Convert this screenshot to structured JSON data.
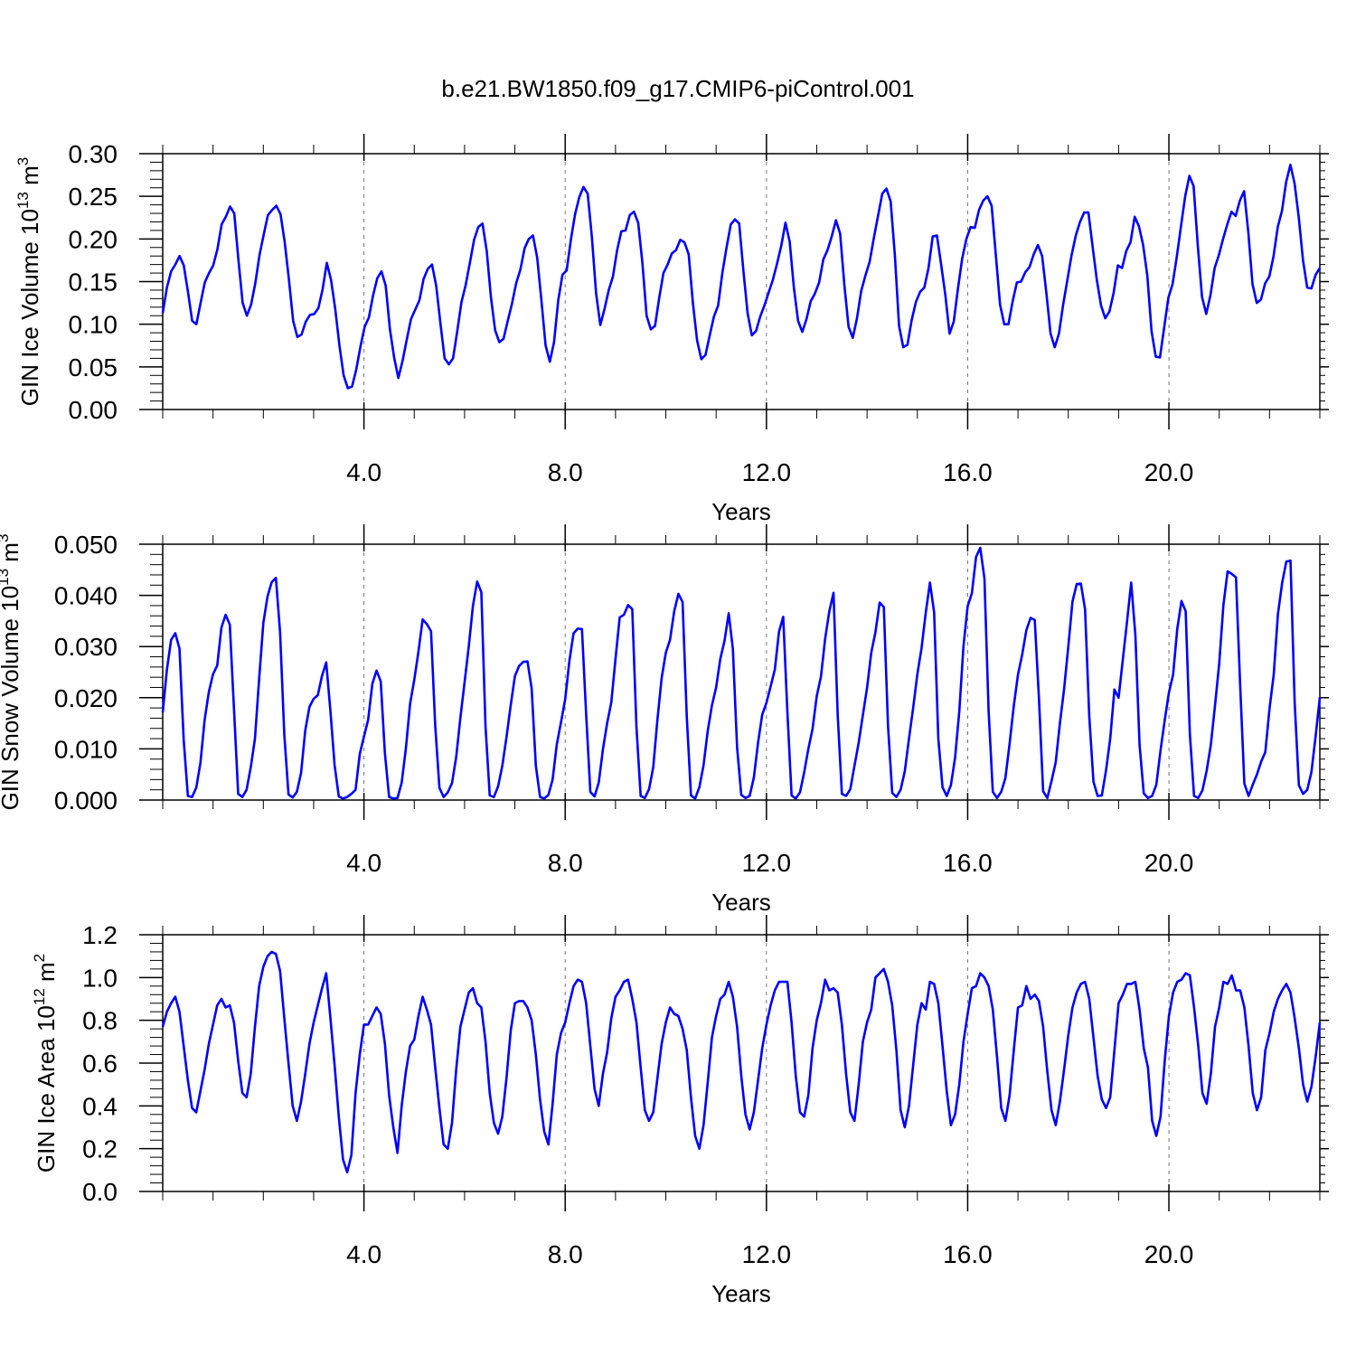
{
  "title": "b.e21.BW1850.f09_g17.CMIP6-piControl.001",
  "chart_data": [
    {
      "type": "line",
      "ylabel_main": "GIN Ice Volume 10",
      "ylabel_exp": "13",
      "ylabel_unit": " m",
      "ylabel_unit_exp": "3",
      "xlabel": "Years",
      "xlim": [
        0,
        23.0
      ],
      "ylim": [
        0,
        0.3
      ],
      "xticks": [
        4.0,
        8.0,
        12.0,
        16.0,
        20.0
      ],
      "xtick_labels": [
        "4.0",
        "8.0",
        "12.0",
        "16.0",
        "20.0"
      ],
      "yticks": [
        0,
        0.05,
        0.1,
        0.15,
        0.2,
        0.25,
        0.3
      ],
      "ytick_labels": [
        "0.00",
        "0.05",
        "0.10",
        "0.15",
        "0.20",
        "0.25",
        "0.30"
      ],
      "grid": "dashed vertical at x ticks",
      "color": "#0000ff",
      "series": [
        {
          "values": [
            0.113,
            0.143,
            0.162,
            0.17,
            0.18,
            0.169,
            0.138,
            0.104,
            0.1,
            0.125,
            0.149,
            0.16,
            0.169,
            0.188,
            0.217,
            0.226,
            0.238,
            0.23,
            0.175,
            0.125,
            0.11,
            0.123,
            0.148,
            0.181,
            0.205,
            0.228,
            0.234,
            0.239,
            0.229,
            0.196,
            0.152,
            0.104,
            0.085,
            0.088,
            0.103,
            0.111,
            0.112,
            0.119,
            0.141,
            0.172,
            0.152,
            0.118,
            0.075,
            0.04,
            0.025,
            0.027,
            0.047,
            0.074,
            0.097,
            0.108,
            0.134,
            0.154,
            0.162,
            0.145,
            0.094,
            0.061,
            0.037,
            0.057,
            0.082,
            0.106,
            0.117,
            0.128,
            0.153,
            0.165,
            0.17,
            0.145,
            0.101,
            0.06,
            0.053,
            0.06,
            0.092,
            0.126,
            0.146,
            0.172,
            0.199,
            0.214,
            0.218,
            0.186,
            0.132,
            0.093,
            0.079,
            0.083,
            0.104,
            0.124,
            0.148,
            0.164,
            0.189,
            0.2,
            0.204,
            0.178,
            0.128,
            0.075,
            0.056,
            0.079,
            0.128,
            0.158,
            0.163,
            0.199,
            0.229,
            0.249,
            0.261,
            0.253,
            0.202,
            0.136,
            0.099,
            0.118,
            0.14,
            0.156,
            0.187,
            0.209,
            0.21,
            0.228,
            0.232,
            0.219,
            0.172,
            0.11,
            0.094,
            0.098,
            0.131,
            0.16,
            0.17,
            0.183,
            0.187,
            0.199,
            0.196,
            0.182,
            0.125,
            0.081,
            0.059,
            0.064,
            0.087,
            0.109,
            0.122,
            0.16,
            0.19,
            0.217,
            0.223,
            0.218,
            0.163,
            0.113,
            0.087,
            0.092,
            0.109,
            0.122,
            0.137,
            0.152,
            0.171,
            0.192,
            0.219,
            0.197,
            0.143,
            0.104,
            0.091,
            0.106,
            0.127,
            0.136,
            0.149,
            0.176,
            0.187,
            0.203,
            0.222,
            0.206,
            0.146,
            0.097,
            0.084,
            0.107,
            0.139,
            0.157,
            0.173,
            0.201,
            0.227,
            0.253,
            0.259,
            0.244,
            0.181,
            0.098,
            0.073,
            0.076,
            0.105,
            0.126,
            0.138,
            0.143,
            0.166,
            0.203,
            0.204,
            0.17,
            0.134,
            0.089,
            0.103,
            0.142,
            0.177,
            0.2,
            0.214,
            0.213,
            0.234,
            0.245,
            0.25,
            0.239,
            0.181,
            0.123,
            0.1,
            0.1,
            0.127,
            0.149,
            0.15,
            0.161,
            0.167,
            0.182,
            0.193,
            0.18,
            0.137,
            0.089,
            0.073,
            0.089,
            0.123,
            0.152,
            0.181,
            0.204,
            0.22,
            0.231,
            0.231,
            0.191,
            0.152,
            0.122,
            0.107,
            0.115,
            0.137,
            0.169,
            0.166,
            0.186,
            0.196,
            0.226,
            0.215,
            0.193,
            0.157,
            0.092,
            0.062,
            0.061,
            0.096,
            0.131,
            0.147,
            0.179,
            0.215,
            0.25,
            0.274,
            0.262,
            0.192,
            0.132,
            0.112,
            0.134,
            0.166,
            0.181,
            0.2,
            0.217,
            0.232,
            0.227,
            0.245,
            0.256,
            0.208,
            0.147,
            0.125,
            0.129,
            0.148,
            0.156,
            0.18,
            0.214,
            0.233,
            0.267,
            0.287,
            0.265,
            0.225,
            0.175,
            0.143,
            0.142,
            0.158,
            0.166
          ]
        }
      ]
    },
    {
      "type": "line",
      "ylabel_main": "GIN Snow Volume 10",
      "ylabel_exp": "13",
      "ylabel_unit": " m",
      "ylabel_unit_exp": "3",
      "xlabel": "Years",
      "xlim": [
        0,
        23.0
      ],
      "ylim": [
        0,
        0.05
      ],
      "xticks": [
        4.0,
        8.0,
        12.0,
        16.0,
        20.0
      ],
      "xtick_labels": [
        "4.0",
        "8.0",
        "12.0",
        "16.0",
        "20.0"
      ],
      "yticks": [
        0,
        0.01,
        0.02,
        0.03,
        0.04,
        0.05
      ],
      "ytick_labels": [
        "0.000",
        "0.010",
        "0.020",
        "0.030",
        "0.040",
        "0.050"
      ],
      "grid": "dashed vertical at x ticks",
      "color": "#0000ff",
      "series": [
        {
          "values": [
            0.0171,
            0.0255,
            0.0313,
            0.0326,
            0.0296,
            0.0118,
            0.0008,
            0.0006,
            0.0024,
            0.0073,
            0.0157,
            0.0211,
            0.0246,
            0.0263,
            0.0337,
            0.0362,
            0.0343,
            0.0178,
            0.0012,
            0.0006,
            0.002,
            0.0064,
            0.012,
            0.0237,
            0.0346,
            0.0398,
            0.0426,
            0.0434,
            0.0327,
            0.0128,
            0.0011,
            0.0005,
            0.0016,
            0.0053,
            0.0136,
            0.0182,
            0.0198,
            0.0205,
            0.0243,
            0.0269,
            0.0174,
            0.0068,
            0.0007,
            0.0003,
            0.0006,
            0.0012,
            0.002,
            0.009,
            0.0124,
            0.0157,
            0.0227,
            0.0253,
            0.0232,
            0.0091,
            0.0006,
            0.0003,
            0.0004,
            0.0034,
            0.0101,
            0.0188,
            0.0235,
            0.029,
            0.0353,
            0.0344,
            0.033,
            0.0145,
            0.0024,
            0.0006,
            0.0015,
            0.0033,
            0.0084,
            0.0161,
            0.023,
            0.03,
            0.038,
            0.0427,
            0.0406,
            0.0143,
            0.0009,
            0.0006,
            0.0027,
            0.0067,
            0.0123,
            0.0185,
            0.0242,
            0.0262,
            0.027,
            0.0271,
            0.0218,
            0.0067,
            0.0006,
            0.0003,
            0.001,
            0.004,
            0.0109,
            0.0152,
            0.0197,
            0.0272,
            0.0326,
            0.0335,
            0.0334,
            0.0167,
            0.0016,
            0.0007,
            0.0034,
            0.0099,
            0.015,
            0.0191,
            0.0276,
            0.0357,
            0.0362,
            0.0381,
            0.0373,
            0.0142,
            0.0008,
            0.0004,
            0.0021,
            0.0064,
            0.0157,
            0.0238,
            0.0288,
            0.0313,
            0.0369,
            0.0403,
            0.0387,
            0.0163,
            0.0009,
            0.0003,
            0.0025,
            0.0068,
            0.0135,
            0.0185,
            0.022,
            0.0276,
            0.0311,
            0.0365,
            0.0295,
            0.0103,
            0.001,
            0.0004,
            0.0008,
            0.0044,
            0.0112,
            0.0167,
            0.019,
            0.0222,
            0.0255,
            0.0329,
            0.0358,
            0.0172,
            0.0009,
            0.0003,
            0.0015,
            0.0054,
            0.01,
            0.0139,
            0.0203,
            0.0241,
            0.0315,
            0.0369,
            0.0405,
            0.0166,
            0.0012,
            0.0008,
            0.0021,
            0.0067,
            0.0112,
            0.0166,
            0.0219,
            0.0288,
            0.0328,
            0.0386,
            0.0377,
            0.0145,
            0.0014,
            0.0006,
            0.002,
            0.0056,
            0.012,
            0.018,
            0.0246,
            0.0297,
            0.0366,
            0.0425,
            0.0367,
            0.012,
            0.0025,
            0.0008,
            0.0029,
            0.0083,
            0.0173,
            0.0301,
            0.0379,
            0.0404,
            0.0475,
            0.0493,
            0.0433,
            0.0173,
            0.0016,
            0.0004,
            0.0016,
            0.0043,
            0.011,
            0.0184,
            0.0245,
            0.0284,
            0.0332,
            0.0356,
            0.0352,
            0.0199,
            0.0017,
            0.0004,
            0.0037,
            0.0074,
            0.015,
            0.0217,
            0.03,
            0.0388,
            0.0422,
            0.0423,
            0.0373,
            0.0164,
            0.0036,
            0.0008,
            0.0009,
            0.0058,
            0.012,
            0.0216,
            0.02,
            0.0274,
            0.0348,
            0.0425,
            0.0323,
            0.0108,
            0.0013,
            0.0004,
            0.0008,
            0.003,
            0.0097,
            0.0156,
            0.021,
            0.0245,
            0.0335,
            0.0389,
            0.0369,
            0.0129,
            0.0008,
            0.0004,
            0.0019,
            0.0057,
            0.0108,
            0.0185,
            0.0267,
            0.0381,
            0.0447,
            0.0442,
            0.0435,
            0.0224,
            0.0032,
            0.0008,
            0.003,
            0.005,
            0.0075,
            0.0094,
            0.0179,
            0.0245,
            0.0363,
            0.0424,
            0.0466,
            0.0468,
            0.019,
            0.0029,
            0.0012,
            0.002,
            0.0055,
            0.0125,
            0.0201
          ]
        }
      ]
    },
    {
      "type": "line",
      "ylabel_main": "GIN Ice Area 10",
      "ylabel_exp": "12",
      "ylabel_unit": " m",
      "ylabel_unit_exp": "2",
      "xlabel": "Years",
      "xlim": [
        0,
        23.0
      ],
      "ylim": [
        0,
        1.2
      ],
      "xticks": [
        4.0,
        8.0,
        12.0,
        16.0,
        20.0
      ],
      "xtick_labels": [
        "4.0",
        "8.0",
        "12.0",
        "16.0",
        "20.0"
      ],
      "yticks": [
        0,
        0.2,
        0.4,
        0.6,
        0.8,
        1.0,
        1.2
      ],
      "ytick_labels": [
        "0.0",
        "0.2",
        "0.4",
        "0.6",
        "0.8",
        "1.0",
        "1.2"
      ],
      "grid": "dashed vertical at x ticks",
      "color": "#0000ff",
      "series": [
        {
          "values": [
            0.77,
            0.84,
            0.88,
            0.91,
            0.84,
            0.68,
            0.52,
            0.39,
            0.37,
            0.47,
            0.57,
            0.69,
            0.78,
            0.87,
            0.9,
            0.86,
            0.87,
            0.79,
            0.61,
            0.46,
            0.44,
            0.55,
            0.77,
            0.96,
            1.05,
            1.1,
            1.12,
            1.11,
            1.03,
            0.81,
            0.6,
            0.4,
            0.33,
            0.42,
            0.55,
            0.69,
            0.79,
            0.87,
            0.95,
            1.02,
            0.81,
            0.59,
            0.35,
            0.15,
            0.09,
            0.17,
            0.46,
            0.64,
            0.78,
            0.78,
            0.82,
            0.86,
            0.83,
            0.69,
            0.45,
            0.3,
            0.18,
            0.4,
            0.56,
            0.68,
            0.71,
            0.82,
            0.91,
            0.85,
            0.78,
            0.58,
            0.39,
            0.22,
            0.2,
            0.32,
            0.57,
            0.77,
            0.85,
            0.93,
            0.95,
            0.88,
            0.86,
            0.7,
            0.46,
            0.32,
            0.27,
            0.35,
            0.53,
            0.75,
            0.88,
            0.89,
            0.89,
            0.86,
            0.8,
            0.64,
            0.43,
            0.28,
            0.22,
            0.41,
            0.64,
            0.74,
            0.79,
            0.88,
            0.96,
            0.99,
            0.98,
            0.88,
            0.68,
            0.48,
            0.4,
            0.55,
            0.65,
            0.81,
            0.91,
            0.94,
            0.98,
            0.99,
            0.9,
            0.79,
            0.58,
            0.38,
            0.33,
            0.37,
            0.53,
            0.69,
            0.79,
            0.86,
            0.83,
            0.82,
            0.76,
            0.66,
            0.44,
            0.26,
            0.2,
            0.31,
            0.51,
            0.72,
            0.82,
            0.9,
            0.92,
            0.98,
            0.91,
            0.77,
            0.54,
            0.36,
            0.29,
            0.37,
            0.52,
            0.67,
            0.78,
            0.87,
            0.94,
            0.98,
            0.98,
            0.98,
            0.79,
            0.54,
            0.37,
            0.35,
            0.45,
            0.67,
            0.8,
            0.88,
            0.99,
            0.94,
            0.95,
            0.93,
            0.78,
            0.55,
            0.37,
            0.33,
            0.5,
            0.7,
            0.79,
            0.85,
            1.0,
            1.02,
            1.04,
            0.98,
            0.87,
            0.66,
            0.38,
            0.3,
            0.4,
            0.59,
            0.78,
            0.88,
            0.85,
            0.98,
            0.97,
            0.88,
            0.68,
            0.47,
            0.31,
            0.36,
            0.5,
            0.7,
            0.83,
            0.95,
            0.96,
            1.02,
            1.0,
            0.96,
            0.85,
            0.63,
            0.39,
            0.33,
            0.45,
            0.66,
            0.86,
            0.87,
            0.96,
            0.9,
            0.92,
            0.89,
            0.77,
            0.56,
            0.38,
            0.31,
            0.42,
            0.57,
            0.73,
            0.86,
            0.93,
            0.97,
            0.98,
            0.9,
            0.72,
            0.54,
            0.43,
            0.39,
            0.44,
            0.66,
            0.88,
            0.92,
            0.97,
            0.97,
            0.98,
            0.85,
            0.67,
            0.58,
            0.33,
            0.26,
            0.35,
            0.61,
            0.82,
            0.93,
            0.98,
            0.99,
            1.02,
            1.01,
            0.86,
            0.68,
            0.46,
            0.41,
            0.55,
            0.77,
            0.86,
            0.98,
            0.97,
            1.01,
            0.94,
            0.94,
            0.86,
            0.68,
            0.46,
            0.38,
            0.44,
            0.66,
            0.74,
            0.84,
            0.9,
            0.94,
            0.97,
            0.93,
            0.81,
            0.67,
            0.5,
            0.42,
            0.49,
            0.63,
            0.79
          ]
        }
      ]
    }
  ]
}
